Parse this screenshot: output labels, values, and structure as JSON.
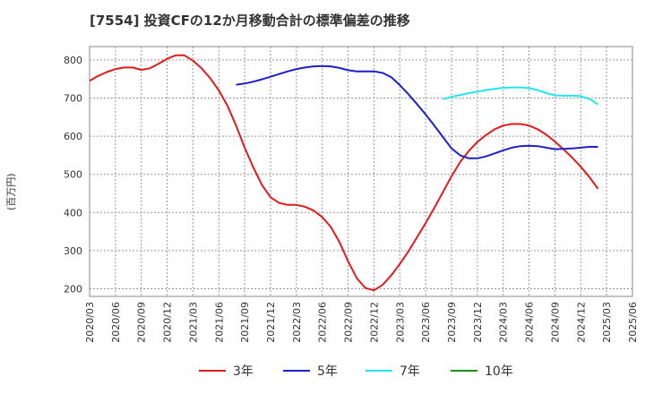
{
  "chart_data": {
    "type": "line",
    "title": "[7554]  投資CFの12か月移動合計の標準偏差の推移",
    "ylabel": "(百万円)",
    "xlabel": "",
    "ylim": [
      180,
      835
    ],
    "yticks": [
      200,
      300,
      400,
      500,
      600,
      700,
      800
    ],
    "xlim": [
      "2020-03",
      "2025-06"
    ],
    "xticks": [
      "2020/03",
      "2020/06",
      "2020/09",
      "2020/12",
      "2021/03",
      "2021/06",
      "2021/09",
      "2021/12",
      "2022/03",
      "2022/06",
      "2022/09",
      "2022/12",
      "2023/03",
      "2023/06",
      "2023/09",
      "2023/12",
      "2024/03",
      "2024/06",
      "2024/09",
      "2024/12",
      "2025/03",
      "2025/06"
    ],
    "grid": true,
    "legend_position": "bottom",
    "series": [
      {
        "name": "3年",
        "color": "#e31a1c",
        "points": [
          [
            "2020-03",
            745
          ],
          [
            "2020-04",
            758
          ],
          [
            "2020-05",
            768
          ],
          [
            "2020-06",
            776
          ],
          [
            "2020-07",
            780
          ],
          [
            "2020-08",
            780
          ],
          [
            "2020-09",
            774
          ],
          [
            "2020-10",
            778
          ],
          [
            "2020-11",
            790
          ],
          [
            "2020-12",
            803
          ],
          [
            "2021-01",
            812
          ],
          [
            "2021-02",
            812
          ],
          [
            "2021-03",
            798
          ],
          [
            "2021-04",
            778
          ],
          [
            "2021-05",
            752
          ],
          [
            "2021-06",
            720
          ],
          [
            "2021-07",
            680
          ],
          [
            "2021-08",
            628
          ],
          [
            "2021-09",
            570
          ],
          [
            "2021-10",
            518
          ],
          [
            "2021-11",
            472
          ],
          [
            "2021-12",
            440
          ],
          [
            "2022-01",
            425
          ],
          [
            "2022-02",
            420
          ],
          [
            "2022-03",
            420
          ],
          [
            "2022-04",
            415
          ],
          [
            "2022-05",
            405
          ],
          [
            "2022-06",
            388
          ],
          [
            "2022-07",
            362
          ],
          [
            "2022-08",
            322
          ],
          [
            "2022-09",
            272
          ],
          [
            "2022-10",
            228
          ],
          [
            "2022-11",
            202
          ],
          [
            "2022-12",
            196
          ],
          [
            "2023-01",
            210
          ],
          [
            "2023-02",
            235
          ],
          [
            "2023-03",
            265
          ],
          [
            "2023-04",
            298
          ],
          [
            "2023-05",
            335
          ],
          [
            "2023-06",
            372
          ],
          [
            "2023-07",
            412
          ],
          [
            "2023-08",
            453
          ],
          [
            "2023-09",
            495
          ],
          [
            "2023-10",
            532
          ],
          [
            "2023-11",
            561
          ],
          [
            "2023-12",
            585
          ],
          [
            "2024-01",
            603
          ],
          [
            "2024-02",
            618
          ],
          [
            "2024-03",
            628
          ],
          [
            "2024-04",
            632
          ],
          [
            "2024-05",
            632
          ],
          [
            "2024-06",
            628
          ],
          [
            "2024-07",
            618
          ],
          [
            "2024-08",
            604
          ],
          [
            "2024-09",
            586
          ],
          [
            "2024-10",
            566
          ],
          [
            "2024-11",
            544
          ],
          [
            "2024-12",
            520
          ],
          [
            "2025-01",
            493
          ],
          [
            "2025-02",
            462
          ]
        ]
      },
      {
        "name": "5年",
        "color": "#1f1fcf",
        "points": [
          [
            "2021-08",
            735
          ],
          [
            "2021-09",
            738
          ],
          [
            "2021-10",
            743
          ],
          [
            "2021-11",
            749
          ],
          [
            "2021-12",
            756
          ],
          [
            "2022-01",
            763
          ],
          [
            "2022-02",
            770
          ],
          [
            "2022-03",
            776
          ],
          [
            "2022-04",
            780
          ],
          [
            "2022-05",
            783
          ],
          [
            "2022-06",
            784
          ],
          [
            "2022-07",
            783
          ],
          [
            "2022-08",
            779
          ],
          [
            "2022-09",
            773
          ],
          [
            "2022-10",
            770
          ],
          [
            "2022-11",
            770
          ],
          [
            "2022-12",
            770
          ],
          [
            "2023-01",
            766
          ],
          [
            "2023-02",
            755
          ],
          [
            "2023-03",
            734
          ],
          [
            "2023-04",
            710
          ],
          [
            "2023-05",
            684
          ],
          [
            "2023-06",
            657
          ],
          [
            "2023-07",
            628
          ],
          [
            "2023-08",
            598
          ],
          [
            "2023-09",
            568
          ],
          [
            "2023-10",
            550
          ],
          [
            "2023-11",
            542
          ],
          [
            "2023-12",
            542
          ],
          [
            "2024-01",
            547
          ],
          [
            "2024-02",
            555
          ],
          [
            "2024-03",
            563
          ],
          [
            "2024-04",
            570
          ],
          [
            "2024-05",
            574
          ],
          [
            "2024-06",
            575
          ],
          [
            "2024-07",
            574
          ],
          [
            "2024-08",
            570
          ],
          [
            "2024-09",
            566
          ],
          [
            "2024-10",
            567
          ],
          [
            "2024-11",
            568
          ],
          [
            "2024-12",
            570
          ],
          [
            "2025-01",
            572
          ],
          [
            "2025-02",
            572
          ]
        ]
      },
      {
        "name": "7年",
        "color": "#22e6f0",
        "points": [
          [
            "2023-08",
            697
          ],
          [
            "2023-09",
            703
          ],
          [
            "2023-10",
            708
          ],
          [
            "2023-11",
            713
          ],
          [
            "2023-12",
            717
          ],
          [
            "2024-01",
            721
          ],
          [
            "2024-02",
            724
          ],
          [
            "2024-03",
            727
          ],
          [
            "2024-04",
            728
          ],
          [
            "2024-05",
            728
          ],
          [
            "2024-06",
            726
          ],
          [
            "2024-07",
            721
          ],
          [
            "2024-08",
            713
          ],
          [
            "2024-09",
            707
          ],
          [
            "2024-10",
            706
          ],
          [
            "2024-11",
            706
          ],
          [
            "2024-12",
            705
          ],
          [
            "2025-01",
            698
          ],
          [
            "2025-02",
            683
          ]
        ]
      },
      {
        "name": "10年",
        "color": "#1f8f1f",
        "points": []
      }
    ]
  }
}
